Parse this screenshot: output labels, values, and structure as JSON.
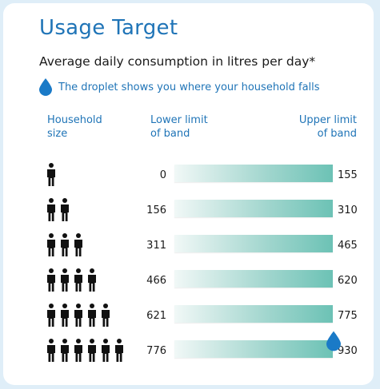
{
  "title": "Usage Target",
  "subtitle": "Average daily consumption in litres per day*",
  "legend": {
    "text": "The droplet shows you where your household falls",
    "icon": "droplet-icon",
    "color": "#1a7ac7"
  },
  "columns": {
    "household_line1": "Household",
    "household_line2": "size",
    "lower_line1": "Lower limit",
    "lower_line2": "of band",
    "upper_line1": "Upper limit",
    "upper_line2": "of band"
  },
  "colors": {
    "title": "#1f74b7",
    "bar_start": "#f1f8f7",
    "bar_end": "#6cc2b5",
    "droplet": "#1a7ac7"
  },
  "chart_data": {
    "type": "table",
    "title": "Usage Target",
    "subtitle": "Average daily consumption in litres per day*",
    "categories": [
      "1",
      "2",
      "3",
      "4",
      "5",
      "6"
    ],
    "rows": [
      {
        "household_size": 1,
        "lower": "0",
        "upper": "155"
      },
      {
        "household_size": 2,
        "lower": "156",
        "upper": "310"
      },
      {
        "household_size": 3,
        "lower": "311",
        "upper": "465"
      },
      {
        "household_size": 4,
        "lower": "466",
        "upper": "620"
      },
      {
        "household_size": 5,
        "lower": "621",
        "upper": "775"
      },
      {
        "household_size": 6,
        "lower": "776",
        "upper": "930"
      }
    ],
    "marker": {
      "household_size": 6,
      "value": 930
    }
  }
}
